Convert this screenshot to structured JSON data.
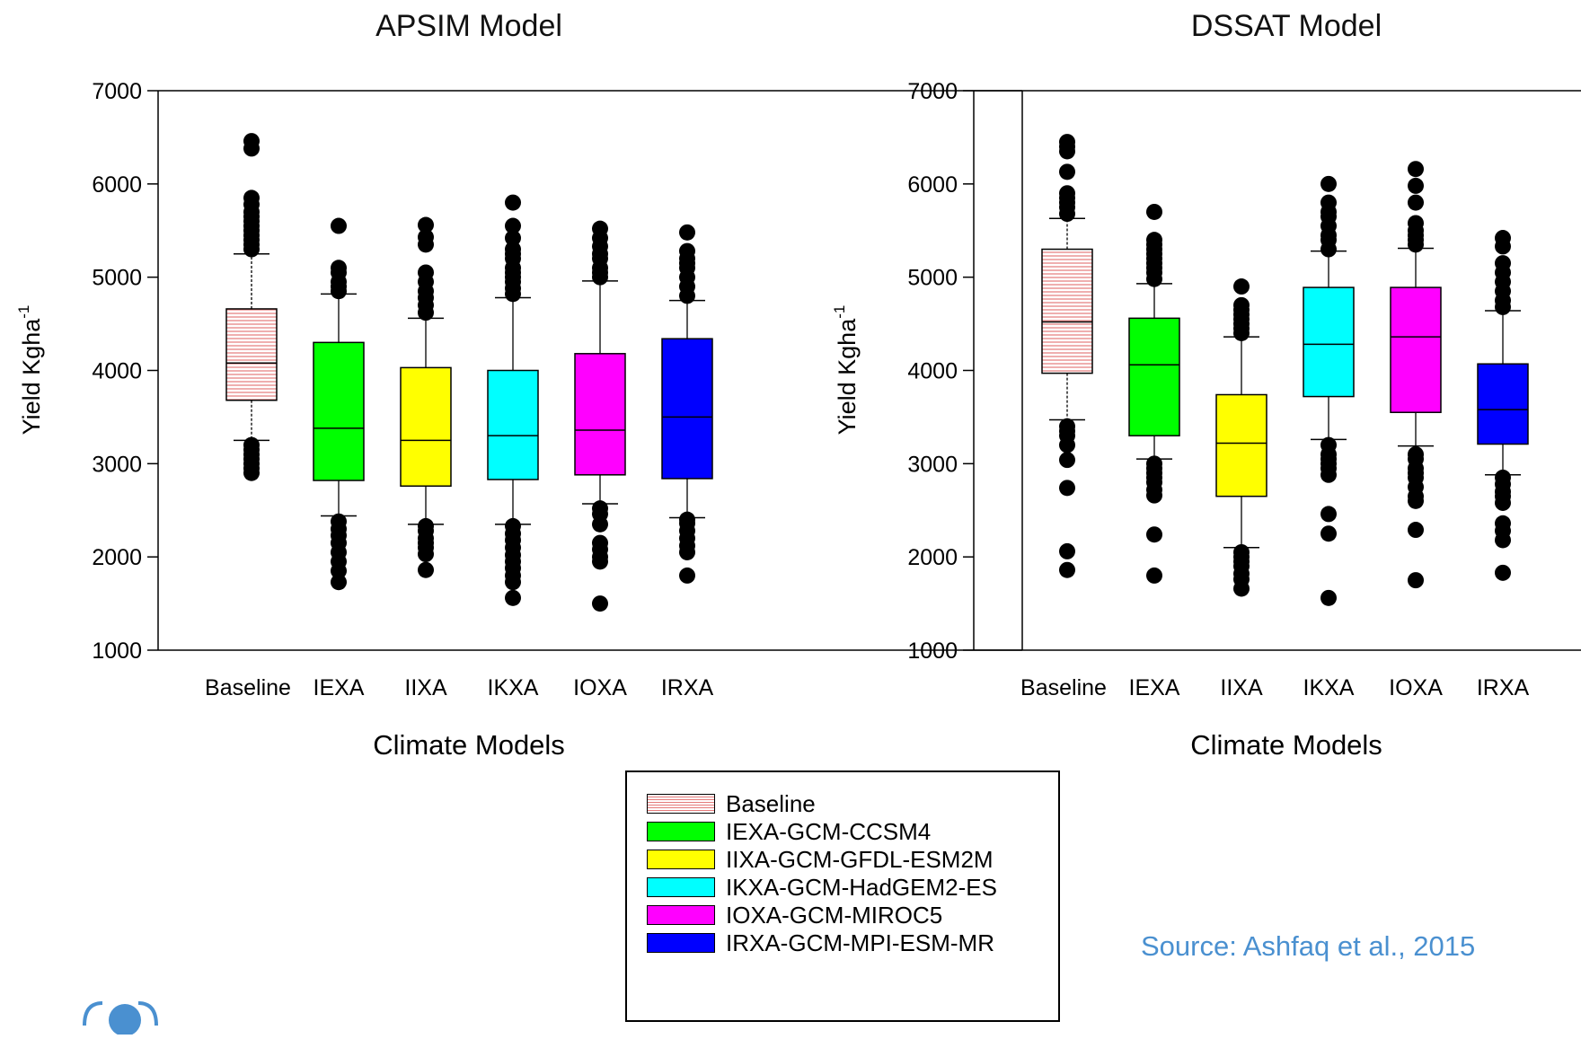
{
  "charts": [
    {
      "type": "box",
      "title": "APSIM  Model",
      "xlabel": "Climate Models",
      "ylabel": "Yield Kgha",
      "ylabel_sup": "-1",
      "ylim": [
        1000,
        7000
      ],
      "yticks": [
        1000,
        2000,
        3000,
        4000,
        5000,
        6000,
        7000
      ],
      "categories": [
        "Baseline",
        "IEXA",
        "IIXA",
        "IKXA",
        "IOXA",
        "IRXA"
      ],
      "boxes": [
        {
          "q1": 3680,
          "median": 4080,
          "q3": 4660,
          "whisker_low": 3250,
          "whisker_high": 5250,
          "outliers": [
            2900,
            2950,
            3000,
            3050,
            3100,
            3150,
            3200,
            5300,
            5350,
            5400,
            5450,
            5500,
            5550,
            5600,
            5650,
            5700,
            5780,
            5850,
            6380,
            6460
          ]
        },
        {
          "q1": 2820,
          "median": 3380,
          "q3": 4300,
          "whisker_low": 2440,
          "whisker_high": 4820,
          "outliers": [
            1730,
            1850,
            1950,
            2050,
            2150,
            2230,
            2300,
            2380,
            4850,
            4900,
            4950,
            5050,
            5100,
            5550
          ]
        },
        {
          "q1": 2760,
          "median": 3250,
          "q3": 4030,
          "whisker_low": 2350,
          "whisker_high": 4560,
          "outliers": [
            1860,
            2030,
            2100,
            2150,
            2200,
            2280,
            2330,
            4620,
            4700,
            4780,
            4850,
            4950,
            5050,
            5350,
            5430,
            5560
          ]
        },
        {
          "q1": 2830,
          "median": 3300,
          "q3": 4000,
          "whisker_low": 2350,
          "whisker_high": 4780,
          "outliers": [
            1560,
            1730,
            1800,
            1880,
            1950,
            2020,
            2100,
            2180,
            2250,
            2330,
            4820,
            4880,
            4950,
            5000,
            5050,
            5100,
            5200,
            5250,
            5300,
            5420,
            5550,
            5800
          ]
        },
        {
          "q1": 2880,
          "median": 3360,
          "q3": 4180,
          "whisker_low": 2570,
          "whisker_high": 4960,
          "outliers": [
            1500,
            1950,
            2000,
            2080,
            2150,
            2350,
            2460,
            2520,
            5000,
            5050,
            5100,
            5200,
            5250,
            5330,
            5420,
            5520
          ]
        },
        {
          "q1": 2840,
          "median": 3500,
          "q3": 4340,
          "whisker_low": 2420,
          "whisker_high": 4750,
          "outliers": [
            1800,
            2050,
            2120,
            2200,
            2280,
            2360,
            2400,
            4800,
            4900,
            5000,
            5100,
            5150,
            5200,
            5280,
            5480
          ]
        }
      ]
    },
    {
      "type": "box",
      "title": "DSSAT Model",
      "xlabel": "Climate Models",
      "ylabel": "Yield Kgha",
      "ylabel_sup": "-1",
      "ylim": [
        1000,
        7000
      ],
      "yticks": [
        1000,
        2000,
        3000,
        4000,
        5000,
        6000,
        7000
      ],
      "categories": [
        "Baseline",
        "IEXA",
        "IIXA",
        "IKXA",
        "IOXA",
        "IRXA"
      ],
      "boxes": [
        {
          "q1": 3970,
          "median": 4520,
          "q3": 5300,
          "whisker_low": 3470,
          "whisker_high": 5630,
          "outliers": [
            1860,
            2060,
            2740,
            3040,
            3200,
            3300,
            3350,
            3400,
            5680,
            5750,
            5800,
            5850,
            5900,
            6130,
            6350,
            6400,
            6450
          ]
        },
        {
          "q1": 3300,
          "median": 4060,
          "q3": 4560,
          "whisker_low": 3050,
          "whisker_high": 4930,
          "outliers": [
            1800,
            2240,
            2660,
            2720,
            2800,
            2850,
            2900,
            2950,
            3000,
            4980,
            5050,
            5100,
            5150,
            5200,
            5250,
            5300,
            5350,
            5400,
            5700
          ]
        },
        {
          "q1": 2650,
          "median": 3220,
          "q3": 3740,
          "whisker_low": 2100,
          "whisker_high": 4360,
          "outliers": [
            1660,
            1760,
            1820,
            1900,
            1950,
            2000,
            2050,
            4400,
            4450,
            4500,
            4550,
            4600,
            4650,
            4700,
            4900
          ]
        },
        {
          "q1": 3720,
          "median": 4280,
          "q3": 4890,
          "whisker_low": 3260,
          "whisker_high": 5280,
          "outliers": [
            1560,
            2250,
            2460,
            2880,
            2950,
            3000,
            3050,
            3100,
            3200,
            5300,
            5400,
            5450,
            5550,
            5650,
            5700,
            5800,
            6000
          ]
        },
        {
          "q1": 3550,
          "median": 4360,
          "q3": 4890,
          "whisker_low": 3190,
          "whisker_high": 5310,
          "outliers": [
            1750,
            2290,
            2600,
            2650,
            2750,
            2850,
            2900,
            2950,
            3050,
            3100,
            5350,
            5400,
            5450,
            5500,
            5580,
            5800,
            5980,
            6160
          ]
        },
        {
          "q1": 3210,
          "median": 3580,
          "q3": 4070,
          "whisker_low": 2880,
          "whisker_high": 4640,
          "outliers": [
            1830,
            2180,
            2280,
            2360,
            2580,
            2650,
            2700,
            2780,
            2850,
            4680,
            4750,
            4850,
            4950,
            5050,
            5150,
            5330,
            5420
          ]
        }
      ]
    }
  ],
  "chart_data": [
    {
      "type": "box",
      "title": "APSIM  Model",
      "categories": [
        "Baseline",
        "IEXA",
        "IIXA",
        "IKXA",
        "IOXA",
        "IRXA"
      ],
      "median": [
        4080,
        3380,
        3250,
        3300,
        3360,
        3500
      ],
      "q1": [
        3680,
        2820,
        2760,
        2830,
        2880,
        2840
      ],
      "q3": [
        4660,
        4300,
        4030,
        4000,
        4180,
        4340
      ],
      "ylim": [
        1000,
        7000
      ],
      "xlabel": "Climate Models",
      "ylabel": "Yield Kgha-1"
    },
    {
      "type": "box",
      "title": "DSSAT Model",
      "categories": [
        "Baseline",
        "IEXA",
        "IIXA",
        "IKXA",
        "IOXA",
        "IRXA"
      ],
      "median": [
        4520,
        4060,
        3220,
        4280,
        4360,
        3580
      ],
      "q1": [
        3970,
        3300,
        2650,
        3720,
        3550,
        3210
      ],
      "q3": [
        5300,
        4560,
        3740,
        4890,
        4890,
        4070
      ],
      "ylim": [
        1000,
        7000
      ],
      "xlabel": "Climate Models",
      "ylabel": "Yield Kgha-1"
    }
  ],
  "legend": {
    "items": [
      {
        "label": "Baseline",
        "color": "#f2b4b4",
        "pattern": "hatch"
      },
      {
        "label": "IEXA-GCM-CCSM4",
        "color": "#00ff00"
      },
      {
        "label": "IIXA-GCM-GFDL-ESM2M",
        "color": "#ffff00"
      },
      {
        "label": "IKXA-GCM-HadGEM2-ES",
        "color": "#00ffff"
      },
      {
        "label": "IOXA-GCM-MIROC5",
        "color": "#ff00ff"
      },
      {
        "label": "IRXA-GCM-MPI-ESM-MR",
        "color": "#0000ff"
      }
    ]
  },
  "source": "Source: Ashfaq et al., 2015"
}
